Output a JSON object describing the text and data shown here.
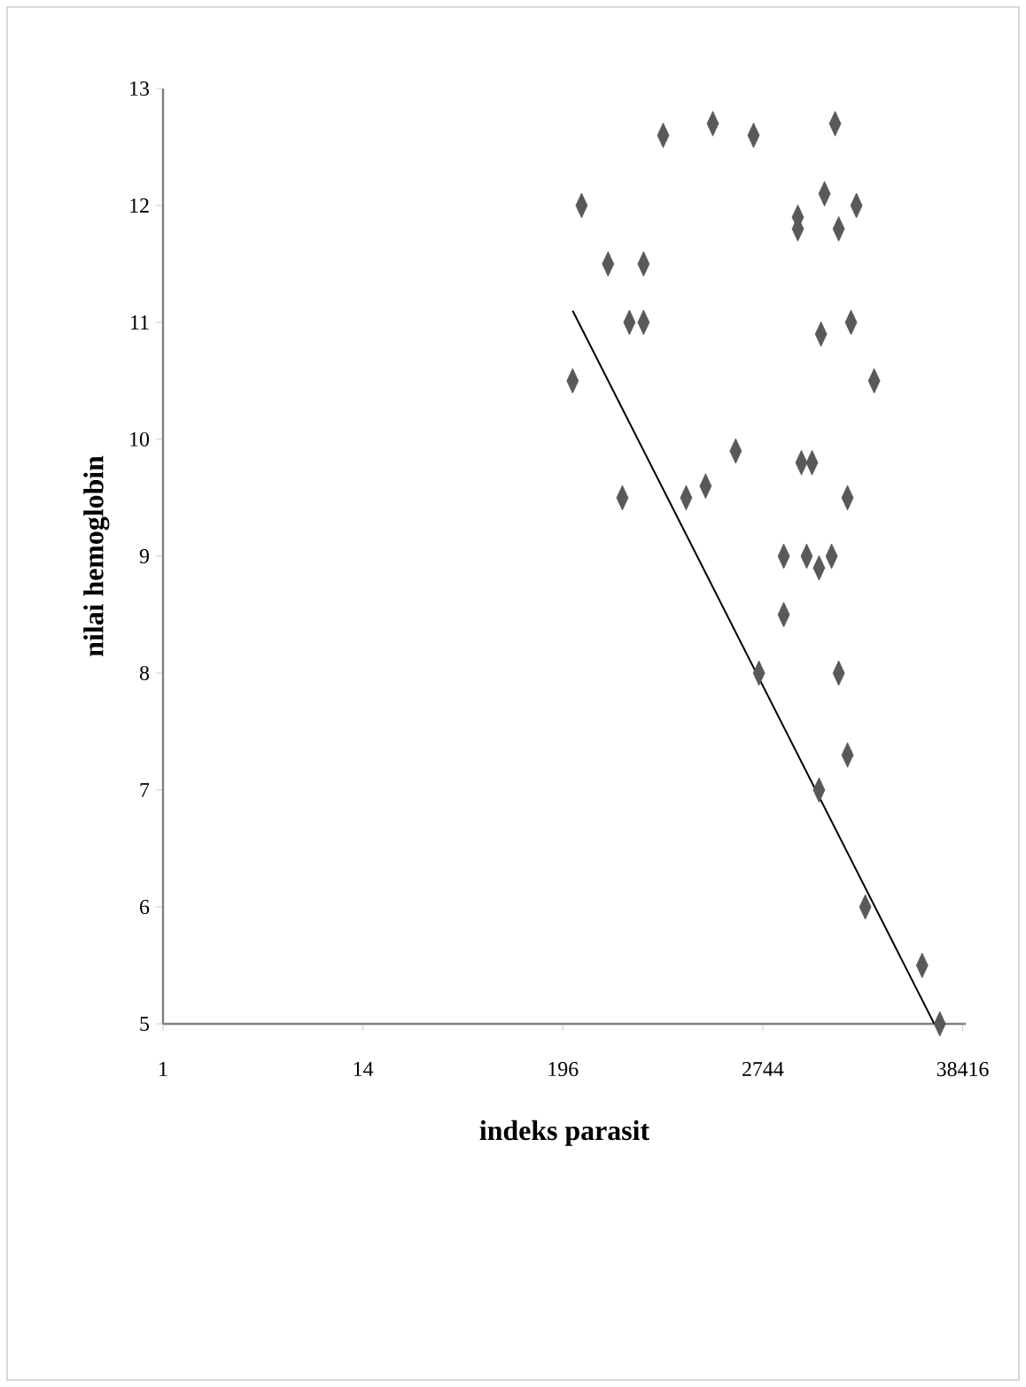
{
  "chart_data": {
    "type": "scatter",
    "xlabel": "indeks parasit",
    "ylabel": "nilai hemoglobin",
    "log": "x",
    "xlim": [
      1,
      40000
    ],
    "xticks": [
      1,
      14,
      196,
      2744,
      38416
    ],
    "ylim": [
      5,
      13
    ],
    "yticks": [
      5,
      6,
      7,
      8,
      9,
      10,
      11,
      12,
      13
    ],
    "grid": false,
    "marker": "diamond",
    "series": [
      {
        "color": "#595959",
        "x": [
          223,
          251,
          356,
          569,
          472,
          569,
          430,
          737,
          1419,
          2430,
          7130,
          6200,
          4360,
          4360,
          7480,
          9450,
          5920,
          8800,
          11940,
          998,
          1290,
          1920,
          4570,
          5260,
          8400,
          3620,
          4900,
          5770,
          6810,
          3620,
          2610,
          7480,
          8400,
          5770,
          10620,
          22500,
          28400
        ],
        "values": [
          10.5,
          12.0,
          11.5,
          11.5,
          11.0,
          11.0,
          9.5,
          12.6,
          12.7,
          12.6,
          12.7,
          12.1,
          11.9,
          11.8,
          11.8,
          12.0,
          10.9,
          11.0,
          10.5,
          9.5,
          9.6,
          9.9,
          9.8,
          9.8,
          9.5,
          9.0,
          9.0,
          8.9,
          9.0,
          8.5,
          8.0,
          8.0,
          7.3,
          7.0,
          6.0,
          5.5,
          5.0
        ]
      },
      {
        "type": "line",
        "color": "#000000",
        "line_style": "solid",
        "marker": "none",
        "x": [
          223,
          26400
        ],
        "values": [
          11.1,
          5.0
        ]
      }
    ]
  }
}
